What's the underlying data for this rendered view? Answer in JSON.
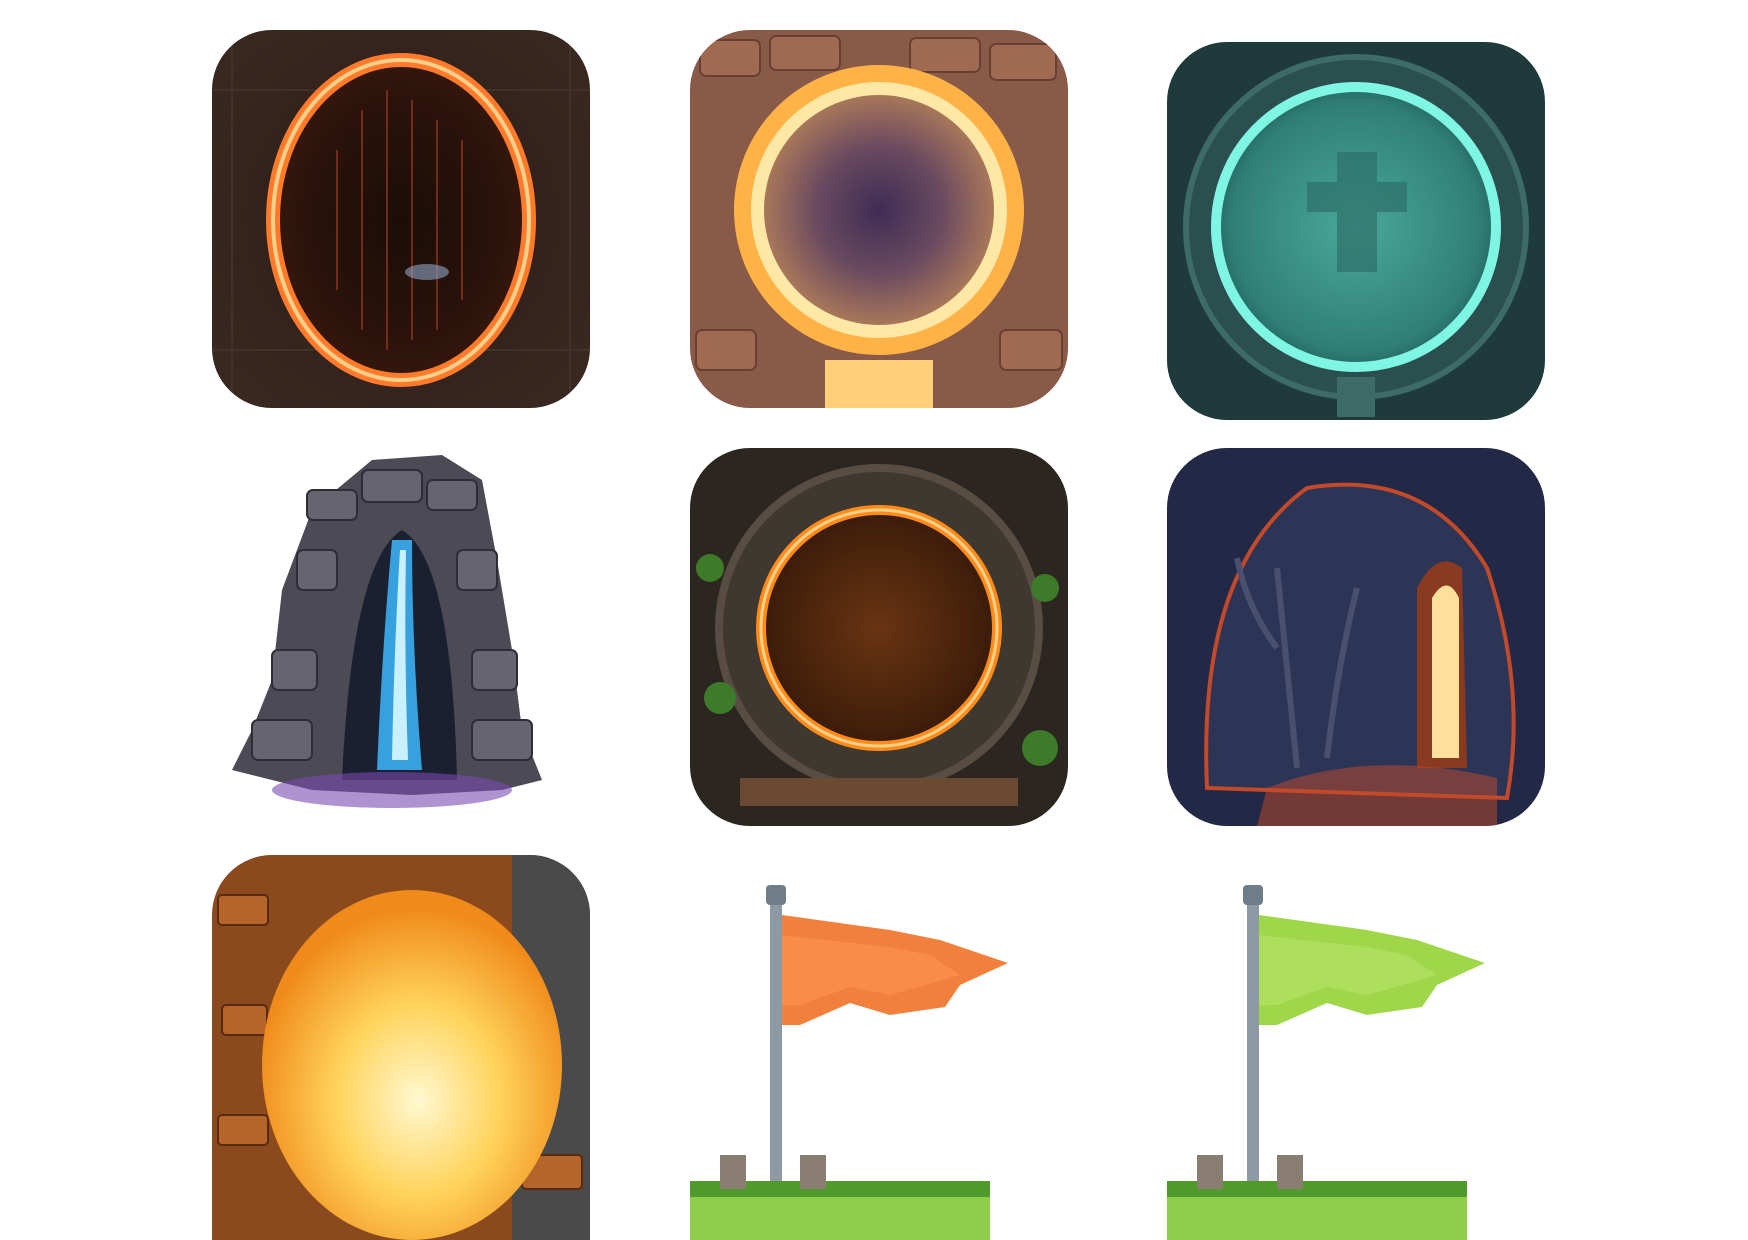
{
  "gallery": {
    "tiles": [
      {
        "subject": "fire-portal-dungeon",
        "accent": "#ff7a2a",
        "shape": "rounded-square"
      },
      {
        "subject": "glowing-stone-ring-portal",
        "accent": "#ffb347",
        "shape": "rounded-square"
      },
      {
        "subject": "teal-energy-portal",
        "accent": "#3fe0c8",
        "shape": "rounded-square"
      },
      {
        "subject": "rock-arch-blue-waterfall-portal",
        "accent": "#3db8ff",
        "shape": "cutout"
      },
      {
        "subject": "ember-ring-portal",
        "accent": "#ff8c1a",
        "shape": "rounded-square"
      },
      {
        "subject": "cave-tree-doorway",
        "accent": "#ff5a1f",
        "shape": "rounded-square"
      },
      {
        "subject": "sunlit-cave-opening",
        "accent": "#ffd35a",
        "shape": "rounded-square"
      },
      {
        "subject": "orange-flag-on-pole",
        "accent": "#f0803c",
        "shape": "cutout"
      },
      {
        "subject": "green-flag-on-pole",
        "accent": "#9fd64a",
        "shape": "cutout"
      }
    ]
  }
}
